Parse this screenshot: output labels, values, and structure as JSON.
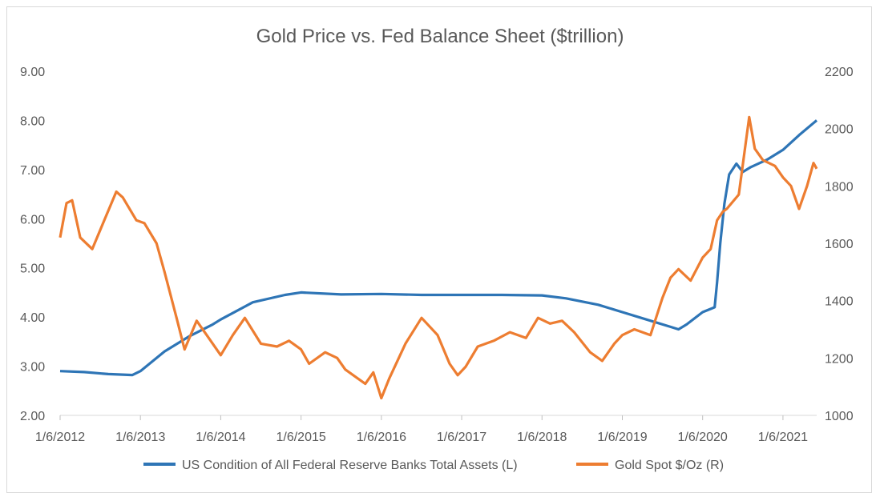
{
  "chart_data": {
    "type": "line",
    "title": "Gold Price vs. Fed Balance Sheet ($trillion)",
    "x_ticks": [
      "1/6/2012",
      "1/6/2013",
      "1/6/2014",
      "1/6/2015",
      "1/6/2016",
      "1/6/2017",
      "1/6/2018",
      "1/6/2019",
      "1/6/2020",
      "1/6/2021"
    ],
    "x_range": [
      "2012-01-06",
      "2021-06-04"
    ],
    "y_left": {
      "ticks": [
        "2.00",
        "3.00",
        "4.00",
        "5.00",
        "6.00",
        "7.00",
        "8.00",
        "9.00"
      ],
      "range": [
        2,
        9
      ]
    },
    "y_right": {
      "ticks": [
        "1000",
        "1200",
        "1400",
        "1600",
        "1800",
        "2000",
        "2200"
      ],
      "range": [
        1000,
        2200
      ]
    },
    "legend_position": "bottom",
    "gridlines": false,
    "series": [
      {
        "name": "US Condition of All Federal Reserve Banks Total Assets  (L)",
        "axis": "left",
        "color": "#2e75b6",
        "x": [
          2012.0,
          2012.3,
          2012.6,
          2012.9,
          2013.0,
          2013.3,
          2013.6,
          2013.9,
          2014.0,
          2014.4,
          2014.8,
          2015.0,
          2015.5,
          2016.0,
          2016.5,
          2017.0,
          2017.5,
          2018.0,
          2018.3,
          2018.7,
          2019.0,
          2019.3,
          2019.6,
          2019.7,
          2019.8,
          2020.0,
          2020.15,
          2020.18,
          2020.22,
          2020.27,
          2020.33,
          2020.42,
          2020.5,
          2020.6,
          2020.8,
          2021.0,
          2021.2,
          2021.42
        ],
        "y": [
          2.9,
          2.88,
          2.84,
          2.82,
          2.9,
          3.3,
          3.6,
          3.85,
          3.95,
          4.3,
          4.45,
          4.5,
          4.46,
          4.47,
          4.45,
          4.45,
          4.45,
          4.44,
          4.38,
          4.25,
          4.1,
          3.95,
          3.8,
          3.75,
          3.85,
          4.1,
          4.2,
          4.7,
          5.5,
          6.3,
          6.9,
          7.12,
          6.95,
          7.05,
          7.2,
          7.4,
          7.7,
          8.0
        ]
      },
      {
        "name": "Gold Spot   $/Oz  (R)",
        "axis": "right",
        "color": "#ed7d31",
        "x": [
          2012.0,
          2012.08,
          2012.15,
          2012.25,
          2012.4,
          2012.55,
          2012.7,
          2012.78,
          2012.95,
          2013.05,
          2013.2,
          2013.3,
          2013.45,
          2013.55,
          2013.7,
          2013.9,
          2014.0,
          2014.15,
          2014.3,
          2014.5,
          2014.7,
          2014.85,
          2015.0,
          2015.1,
          2015.3,
          2015.45,
          2015.55,
          2015.7,
          2015.8,
          2015.9,
          2016.0,
          2016.1,
          2016.3,
          2016.5,
          2016.7,
          2016.85,
          2016.95,
          2017.05,
          2017.2,
          2017.4,
          2017.6,
          2017.8,
          2017.95,
          2018.1,
          2018.25,
          2018.4,
          2018.6,
          2018.75,
          2018.9,
          2019.0,
          2019.15,
          2019.35,
          2019.5,
          2019.6,
          2019.7,
          2019.85,
          2020.0,
          2020.1,
          2020.18,
          2020.25,
          2020.3,
          2020.45,
          2020.58,
          2020.65,
          2020.75,
          2020.9,
          2021.0,
          2021.1,
          2021.2,
          2021.3,
          2021.38,
          2021.42
        ],
        "y": [
          1620,
          1740,
          1750,
          1620,
          1580,
          1680,
          1780,
          1760,
          1680,
          1670,
          1600,
          1500,
          1340,
          1230,
          1330,
          1250,
          1210,
          1280,
          1340,
          1250,
          1240,
          1260,
          1230,
          1180,
          1220,
          1200,
          1160,
          1130,
          1110,
          1150,
          1060,
          1130,
          1250,
          1340,
          1280,
          1180,
          1140,
          1170,
          1240,
          1260,
          1290,
          1270,
          1340,
          1320,
          1330,
          1290,
          1220,
          1190,
          1250,
          1280,
          1300,
          1280,
          1410,
          1480,
          1510,
          1470,
          1550,
          1580,
          1680,
          1710,
          1720,
          1770,
          2040,
          1930,
          1890,
          1870,
          1830,
          1800,
          1720,
          1800,
          1880,
          1860
        ]
      }
    ]
  }
}
